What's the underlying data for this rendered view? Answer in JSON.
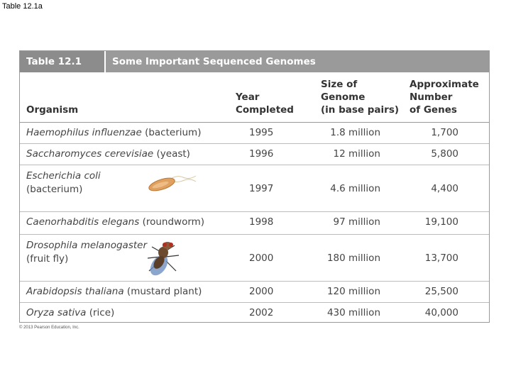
{
  "slide_title": "Table 12.1a",
  "table": {
    "label": "Table 12.1",
    "title": "Some Important Sequenced Genomes",
    "columns": [
      [
        "Organism"
      ],
      [
        "Year",
        "Completed"
      ],
      [
        "Size of",
        "Genome",
        "(in base pairs)"
      ],
      [
        "Approximate",
        "Number",
        "of Genes"
      ]
    ],
    "rows": [
      [
        {
          "italic": "Haemophilus influenzae",
          "plain": "(bacterium)"
        },
        "1995",
        "1.8 million",
        "1,700"
      ],
      [
        {
          "italic": "Saccharomyces cerevisiae",
          "plain": "(yeast)"
        },
        "1996",
        "12 million",
        "5,800"
      ],
      [
        {
          "italic": "Escherichia coli",
          "plain": "(bacterium)"
        },
        "1997",
        "4.6 million",
        "4,400"
      ],
      [
        {
          "italic": "Caenorhabditis elegans",
          "plain": "(roundworm)"
        },
        "1998",
        "97 million",
        "19,100"
      ],
      [
        {
          "italic": "Drosophila melanogaster",
          "plain": "(fruit fly)"
        },
        "2000",
        "180 million",
        "13,700"
      ],
      [
        {
          "italic": "Arabidopsis thaliana",
          "plain": "(mustard plant)"
        },
        "2000",
        "120 million",
        "25,500"
      ],
      [
        {
          "italic": "Oryza sativa",
          "plain": "(rice)"
        },
        "2002",
        "430 million",
        "40,000"
      ]
    ]
  },
  "copyright": "© 2013 Pearson Education, Inc."
}
